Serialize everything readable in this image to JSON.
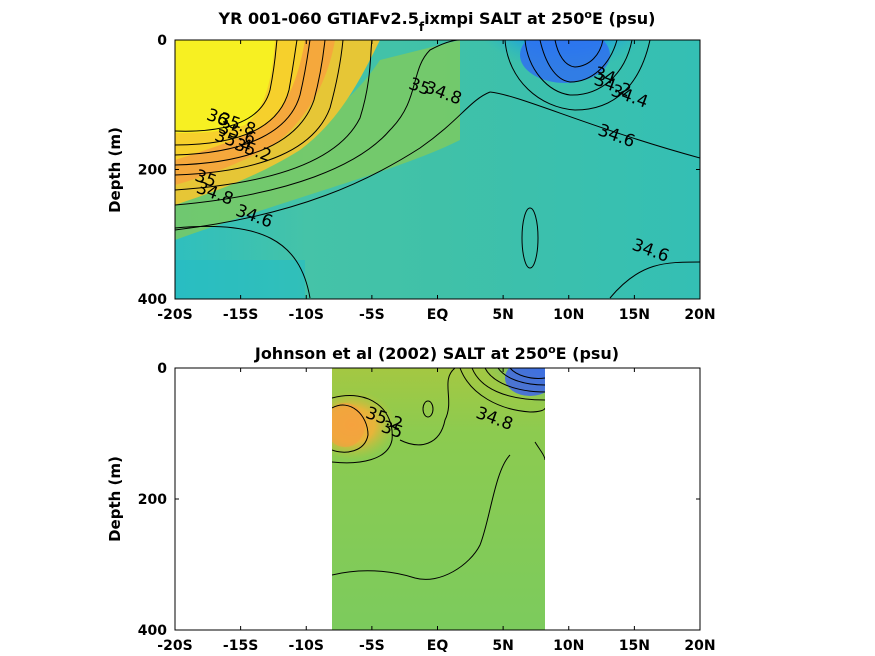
{
  "chart_data": [
    {
      "type": "heatmap",
      "title_main": "YR 001-060 GTIAFv2.5",
      "title_sub": "f",
      "title_rest": "ixmpi SALT at 250",
      "title_sup": "o",
      "title_end": "E (psu)",
      "ylabel": "Depth (m)",
      "xlabel": "",
      "xlim": [
        -20,
        20
      ],
      "ylim": [
        400,
        0
      ],
      "x_ticks": [
        -20,
        -15,
        -10,
        -5,
        0,
        5,
        10,
        15,
        20
      ],
      "x_tick_labels": [
        "-20S",
        "-15S",
        "-10S",
        "-5S",
        "EQ",
        "5N",
        "10N",
        "15N",
        "20N"
      ],
      "y_ticks": [
        0,
        200,
        400
      ],
      "y_tick_labels": [
        "0",
        "200",
        "400"
      ],
      "contour_levels": [
        34.0,
        34.2,
        34.4,
        34.6,
        34.8,
        35.0,
        35.2,
        35.4,
        35.6,
        35.8,
        36.0
      ],
      "contour_labels": [
        {
          "text": "36",
          "x": -16.9,
          "depth": 128
        },
        {
          "text": "35.8",
          "x": -15.4,
          "depth": 138
        },
        {
          "text": "35.6",
          "x": -15.4,
          "depth": 152
        },
        {
          "text": "35.4",
          "x": -15.7,
          "depth": 164
        },
        {
          "text": "35.2",
          "x": -14.2,
          "depth": 178
        },
        {
          "text": "35",
          "x": -17.8,
          "depth": 222
        },
        {
          "text": "34.8",
          "x": -17.1,
          "depth": 245
        },
        {
          "text": "34.6",
          "x": -14.1,
          "depth": 280
        },
        {
          "text": "35",
          "x": -1.5,
          "depth": 80
        },
        {
          "text": "34.8",
          "x": 0.3,
          "depth": 90
        },
        {
          "text": "34",
          "x": 12.6,
          "depth": 63
        },
        {
          "text": "34.2",
          "x": 13.2,
          "depth": 78
        },
        {
          "text": "34.4",
          "x": 14.5,
          "depth": 95
        },
        {
          "text": "34.6",
          "x": 13.5,
          "depth": 156
        },
        {
          "text": "34.6",
          "x": 16.1,
          "depth": 333
        }
      ]
    },
    {
      "type": "heatmap",
      "title_main": "Johnson et al (2002) SALT at 250",
      "title_sup": "o",
      "title_end": "E (psu)",
      "ylabel": "Depth (m)",
      "xlabel": "",
      "xlim": [
        -20,
        20
      ],
      "ylim": [
        400,
        0
      ],
      "data_xlim": [
        -8,
        8.3
      ],
      "x_ticks": [
        -20,
        -15,
        -10,
        -5,
        0,
        5,
        10,
        15,
        20
      ],
      "x_tick_labels": [
        "-20S",
        "-15S",
        "-10S",
        "-5S",
        "EQ",
        "5N",
        "10N",
        "15N",
        "20N"
      ],
      "y_ticks": [
        0,
        200,
        400
      ],
      "y_tick_labels": [
        "0",
        "200",
        "400"
      ],
      "contour_levels": [
        34.0,
        34.2,
        34.4,
        34.6,
        34.8,
        35.0,
        35.2
      ],
      "contour_labels": [
        {
          "text": "35.2",
          "x": -4.2,
          "depth": 85
        },
        {
          "text": "35",
          "x": -3.6,
          "depth": 102
        },
        {
          "text": "34.8",
          "x": 4.2,
          "depth": 85
        }
      ]
    }
  ]
}
